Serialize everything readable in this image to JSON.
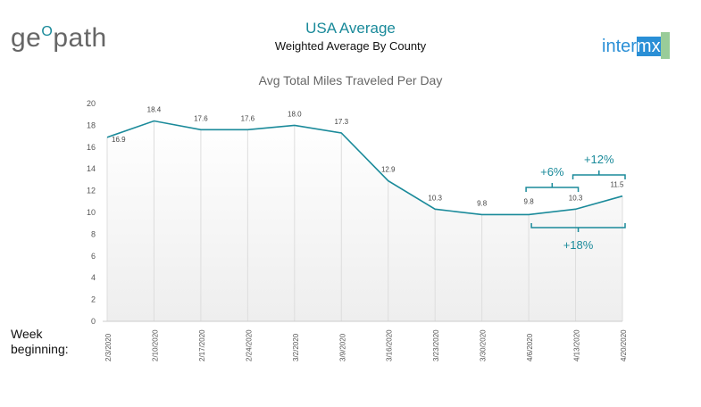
{
  "header": {
    "title": "USA Average",
    "subtitle": "Weighted Average By County",
    "left_logo": "geopath",
    "right_logo": "intermx"
  },
  "x_caption": "Week beginning:",
  "chart_data": {
    "type": "line",
    "title": "Avg Total Miles Traveled Per Day",
    "categories": [
      "2/3/2020",
      "2/10/2020",
      "2/17/2020",
      "2/24/2020",
      "3/2/2020",
      "3/9/2020",
      "3/16/2020",
      "3/23/2020",
      "3/30/2020",
      "4/6/2020",
      "4/13/2020",
      "4/20/2020"
    ],
    "values": [
      16.9,
      18.4,
      17.6,
      17.6,
      18.0,
      17.3,
      12.9,
      10.3,
      9.8,
      9.8,
      10.3,
      11.5
    ],
    "ylim": [
      0,
      20
    ],
    "yticks": [
      0,
      2,
      4,
      6,
      8,
      10,
      12,
      14,
      16,
      18,
      20
    ],
    "grid": "vertical",
    "line_color": "#1a8a9a",
    "annotations": [
      {
        "label": "+6%",
        "from": "4/6/2020",
        "to": "4/13/2020",
        "position": "above"
      },
      {
        "label": "+12%",
        "from": "4/13/2020",
        "to": "4/20/2020",
        "position": "above"
      },
      {
        "label": "+18%",
        "from": "4/6/2020",
        "to": "4/20/2020",
        "position": "below"
      }
    ]
  }
}
